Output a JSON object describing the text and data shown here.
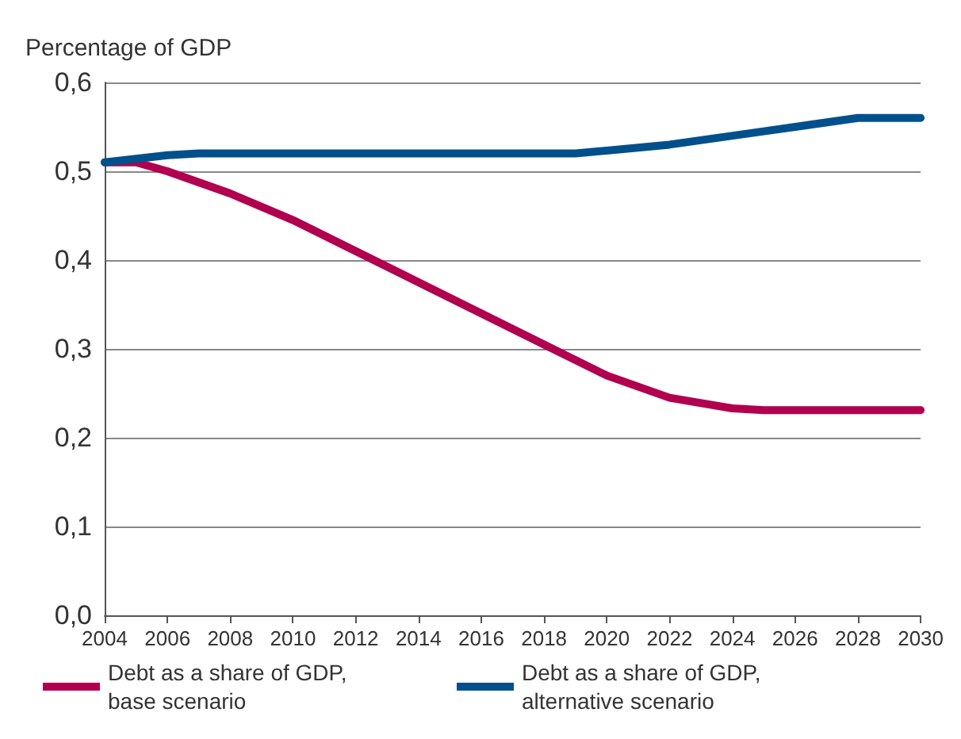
{
  "chart_data": {
    "type": "line",
    "ylabel": "Percentage of GDP",
    "xlim": [
      2004,
      2030
    ],
    "xticks": [
      2004,
      2006,
      2008,
      2010,
      2012,
      2014,
      2016,
      2018,
      2020,
      2022,
      2024,
      2026,
      2028,
      2030
    ],
    "ylim": [
      0,
      0.6
    ],
    "yticks": [
      {
        "value": 0,
        "label": "0,0"
      },
      {
        "value": 0.1,
        "label": "0,1"
      },
      {
        "value": 0.2,
        "label": "0,2"
      },
      {
        "value": 0.3,
        "label": "0,3"
      },
      {
        "value": 0.4,
        "label": "0,4"
      },
      {
        "value": 0.5,
        "label": "0,5"
      },
      {
        "value": 0.6,
        "label": "0,6"
      }
    ],
    "grid": "y",
    "legend": "bottom",
    "marker": "none",
    "line_style": "solid",
    "series": [
      {
        "name": "Debt as a share of GDP, base scenario",
        "color": "#b1004f",
        "x": [
          2004,
          2005,
          2006,
          2008,
          2010,
          2012,
          2014,
          2016,
          2018,
          2020,
          2022,
          2024,
          2025,
          2030
        ],
        "values": [
          0.51,
          0.51,
          0.5,
          0.475,
          0.445,
          0.41,
          0.375,
          0.34,
          0.305,
          0.27,
          0.245,
          0.233,
          0.231,
          0.231
        ]
      },
      {
        "name": "Debt as a share of GDP, alternative scenario",
        "color": "#00508c",
        "x": [
          2004,
          2006,
          2007,
          2019,
          2022,
          2025,
          2028,
          2030
        ],
        "values": [
          0.51,
          0.518,
          0.52,
          0.52,
          0.53,
          0.545,
          0.56,
          0.56
        ]
      }
    ]
  }
}
